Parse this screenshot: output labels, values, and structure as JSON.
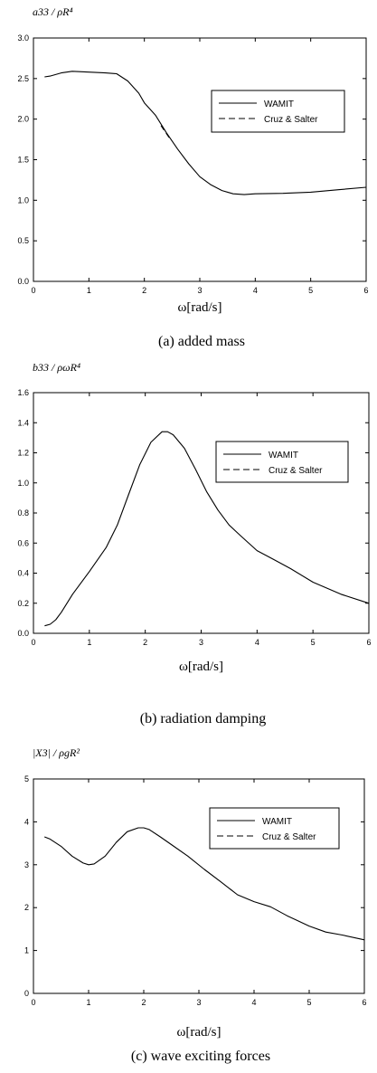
{
  "chart_data": [
    {
      "type": "line",
      "ylabel": "a33 / ρR⁴",
      "xlabel": "ω[rad/s]",
      "caption": "(a) added mass",
      "xlim": [
        0,
        6
      ],
      "ylim": [
        0,
        3.0
      ],
      "xticks": [
        "0",
        "1",
        "2",
        "3",
        "4",
        "5",
        "6"
      ],
      "yticks": [
        "0.0",
        "0.5",
        "1.0",
        "1.5",
        "2.0",
        "2.5",
        "3.0"
      ],
      "legend": {
        "position": "top-right",
        "entries": [
          "WAMIT",
          "Cruz & Salter"
        ]
      },
      "series": [
        {
          "name": "WAMIT",
          "style": "solid",
          "x": [
            0.2,
            0.3,
            0.5,
            0.7,
            1.0,
            1.3,
            1.5,
            1.7,
            1.9,
            2.0,
            2.2,
            2.4,
            2.6,
            2.8,
            3.0,
            3.2,
            3.4,
            3.6,
            3.8,
            4.0,
            4.5,
            5.0,
            5.5,
            6.0
          ],
          "y": [
            2.52,
            2.53,
            2.57,
            2.59,
            2.58,
            2.57,
            2.56,
            2.47,
            2.32,
            2.2,
            2.05,
            1.83,
            1.63,
            1.45,
            1.29,
            1.19,
            1.12,
            1.08,
            1.07,
            1.08,
            1.085,
            1.1,
            1.13,
            1.16
          ]
        },
        {
          "name": "Cruz & Salter",
          "style": "dashed",
          "x": [
            2.3,
            2.35,
            2.4,
            2.45
          ],
          "y": [
            1.92,
            1.87,
            1.82,
            1.77
          ]
        }
      ]
    },
    {
      "type": "line",
      "ylabel": "b33 / ρωR⁴",
      "xlabel": "ω[rad/s]",
      "caption": "(b) radiation damping",
      "xlim": [
        0,
        6
      ],
      "ylim": [
        0,
        1.6
      ],
      "xticks": [
        "0",
        "1",
        "2",
        "3",
        "4",
        "5",
        "6"
      ],
      "yticks": [
        "0.0",
        "0.2",
        "0.4",
        "0.6",
        "0.8",
        "1.0",
        "1.2",
        "1.4",
        "1.6"
      ],
      "legend": {
        "position": "top-right",
        "entries": [
          "WAMIT",
          "Cruz & Salter"
        ]
      },
      "series": [
        {
          "name": "WAMIT",
          "style": "solid",
          "x": [
            0.2,
            0.3,
            0.4,
            0.5,
            0.7,
            1.0,
            1.3,
            1.5,
            1.7,
            1.9,
            2.1,
            2.3,
            2.4,
            2.5,
            2.7,
            2.9,
            3.1,
            3.3,
            3.5,
            3.7,
            4.0,
            4.3,
            4.6,
            5.0,
            5.5,
            6.0
          ],
          "y": [
            0.05,
            0.06,
            0.09,
            0.14,
            0.26,
            0.41,
            0.57,
            0.72,
            0.92,
            1.12,
            1.27,
            1.34,
            1.34,
            1.32,
            1.23,
            1.09,
            0.94,
            0.82,
            0.72,
            0.65,
            0.55,
            0.49,
            0.43,
            0.34,
            0.26,
            0.2
          ]
        },
        {
          "name": "Cruz & Salter",
          "style": "dashed",
          "x": [],
          "y": []
        }
      ]
    },
    {
      "type": "line",
      "ylabel": "|X3| / ρgR²",
      "xlabel": "ω[rad/s]",
      "caption": "(c) wave exciting forces",
      "xlim": [
        0,
        6
      ],
      "ylim": [
        0,
        5
      ],
      "xticks": [
        "0",
        "1",
        "2",
        "3",
        "4",
        "5",
        "6"
      ],
      "yticks": [
        "0",
        "1",
        "2",
        "3",
        "4",
        "5"
      ],
      "legend": {
        "position": "top-right",
        "entries": [
          "WAMIT",
          "Cruz & Salter"
        ]
      },
      "series": [
        {
          "name": "WAMIT",
          "style": "solid",
          "x": [
            0.2,
            0.3,
            0.5,
            0.7,
            0.9,
            1.0,
            1.1,
            1.3,
            1.5,
            1.7,
            1.9,
            2.0,
            2.1,
            2.3,
            2.5,
            2.8,
            3.1,
            3.4,
            3.7,
            4.0,
            4.3,
            4.6,
            5.0,
            5.3,
            5.6,
            6.0
          ],
          "y": [
            3.65,
            3.6,
            3.43,
            3.2,
            3.04,
            3.0,
            3.02,
            3.2,
            3.52,
            3.77,
            3.86,
            3.86,
            3.82,
            3.65,
            3.47,
            3.2,
            2.89,
            2.6,
            2.3,
            2.14,
            2.02,
            1.81,
            1.57,
            1.43,
            1.36,
            1.25
          ]
        },
        {
          "name": "Cruz & Salter",
          "style": "dashed",
          "x": [],
          "y": []
        }
      ]
    }
  ]
}
